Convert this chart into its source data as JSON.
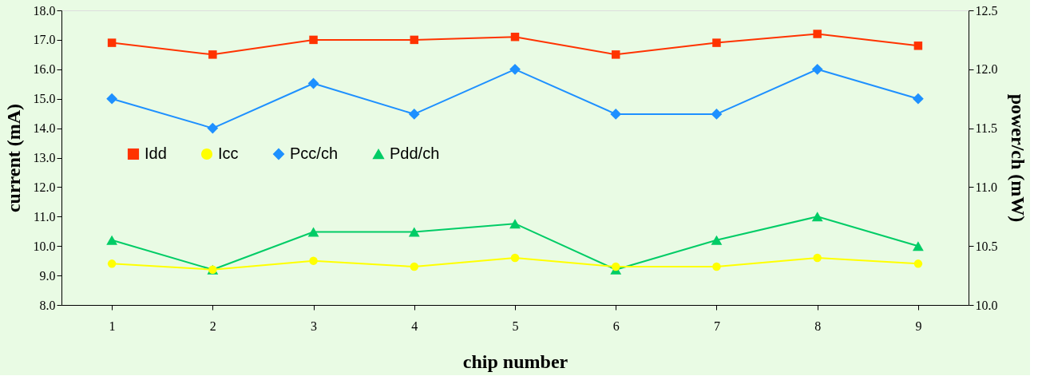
{
  "chart_data": {
    "type": "line",
    "xlabel": "chip number",
    "ylabel": "current (mA)",
    "y2label": "power/ch (mW)",
    "categories": [
      "1",
      "2",
      "3",
      "4",
      "5",
      "6",
      "7",
      "8",
      "9"
    ],
    "series": [
      {
        "name": "Idd",
        "color": "#ff3300",
        "marker": "square",
        "values": [
          16.9,
          16.5,
          17.0,
          17.0,
          17.1,
          16.5,
          16.9,
          17.2,
          16.8
        ]
      },
      {
        "name": "Icc",
        "color": "#ffff00",
        "marker": "circle",
        "values": [
          9.4,
          9.2,
          9.5,
          9.3,
          9.6,
          9.3,
          9.3,
          9.6,
          9.4
        ]
      },
      {
        "name": "Pcc/ch",
        "color": "#1e90ff",
        "marker": "diamond",
        "axis": "y2",
        "values": [
          11.75,
          11.5,
          11.88,
          11.62,
          12.0,
          11.62,
          11.62,
          12.0,
          11.75
        ]
      },
      {
        "name": "Pdd/ch",
        "color": "#00cc66",
        "marker": "triangle",
        "axis": "y2",
        "values": [
          10.55,
          10.3,
          10.62,
          10.62,
          10.69,
          10.3,
          10.55,
          10.75,
          10.5
        ]
      }
    ],
    "ylim": [
      8,
      18
    ],
    "yticks": [
      {
        "value": 8,
        "label": "8.0"
      },
      {
        "value": 9,
        "label": "9.0"
      },
      {
        "value": 10,
        "label": "10.0"
      },
      {
        "value": 11,
        "label": "11.0"
      },
      {
        "value": 12,
        "label": "12.0"
      },
      {
        "value": 13,
        "label": "13.0"
      },
      {
        "value": 14,
        "label": "14.0"
      },
      {
        "value": 15,
        "label": "15.0"
      },
      {
        "value": 16,
        "label": "16.0"
      },
      {
        "value": 17,
        "label": "17.0"
      },
      {
        "value": 18,
        "label": "18.0"
      }
    ],
    "y2lim": [
      10,
      12.5
    ],
    "y2ticks": [
      {
        "value": 10,
        "label": "10.0"
      },
      {
        "value": 10.5,
        "label": "10.5"
      },
      {
        "value": 11,
        "label": "11.0"
      },
      {
        "value": 11.5,
        "label": "11.5"
      },
      {
        "value": 12,
        "label": "12.0"
      },
      {
        "value": 12.5,
        "label": "12.5"
      }
    ],
    "grid": false,
    "legend": "left",
    "line_style": "solid"
  }
}
